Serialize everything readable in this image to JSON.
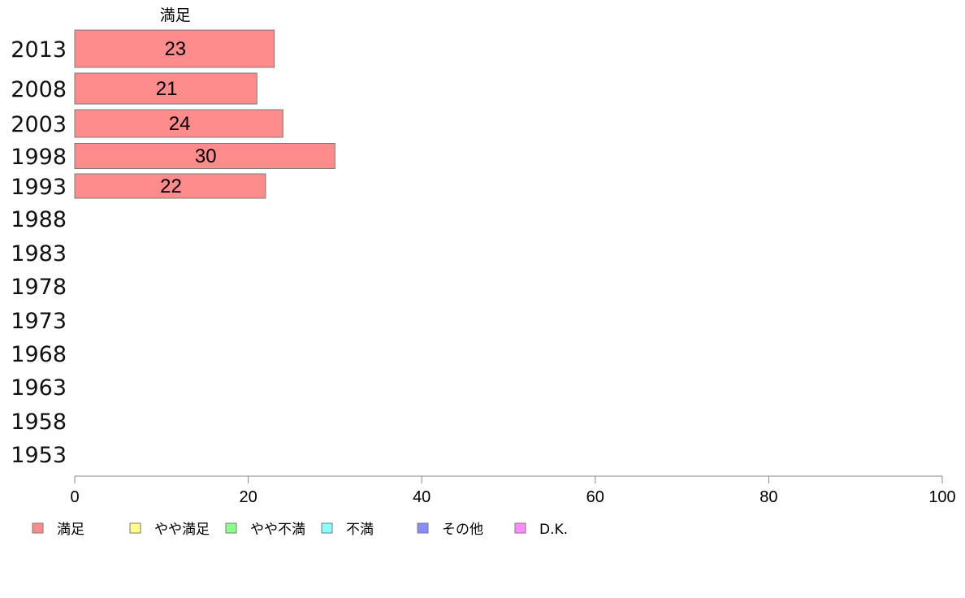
{
  "chart_data": {
    "type": "bar",
    "orientation": "horizontal",
    "stacked": true,
    "title": "",
    "xlabel": "",
    "ylabel": "",
    "xlim": [
      0,
      100
    ],
    "x_ticks": [
      0,
      20,
      40,
      60,
      80,
      100
    ],
    "category_header": "満足",
    "categories": [
      "2013",
      "2008",
      "2003",
      "1998",
      "1993",
      "1988",
      "1983",
      "1978",
      "1973",
      "1968",
      "1963",
      "1958",
      "1953"
    ],
    "series": [
      {
        "name": "満足",
        "color": "#ff8c8c",
        "values": [
          23,
          21,
          24,
          30,
          22,
          null,
          null,
          null,
          null,
          null,
          null,
          null,
          null
        ]
      },
      {
        "name": "やや満足",
        "color": "#ffff8c",
        "values": [
          null,
          null,
          null,
          null,
          null,
          null,
          null,
          null,
          null,
          null,
          null,
          null,
          null
        ]
      },
      {
        "name": "やや不満",
        "color": "#8cff8c",
        "values": [
          null,
          null,
          null,
          null,
          null,
          null,
          null,
          null,
          null,
          null,
          null,
          null,
          null
        ]
      },
      {
        "name": "不満",
        "color": "#8cffff",
        "values": [
          null,
          null,
          null,
          null,
          null,
          null,
          null,
          null,
          null,
          null,
          null,
          null,
          null
        ]
      },
      {
        "name": "その他",
        "color": "#8c8cff",
        "values": [
          null,
          null,
          null,
          null,
          null,
          null,
          null,
          null,
          null,
          null,
          null,
          null,
          null
        ]
      },
      {
        "name": "D.K.",
        "color": "#ff8cff",
        "values": [
          null,
          null,
          null,
          null,
          null,
          null,
          null,
          null,
          null,
          null,
          null,
          null,
          null
        ]
      }
    ],
    "grid": false,
    "legend_position": "bottom-left"
  }
}
